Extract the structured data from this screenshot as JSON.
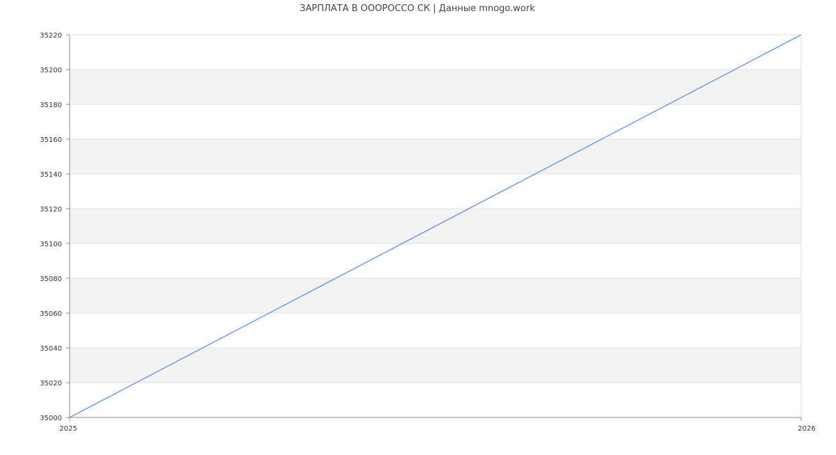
{
  "chart_data": {
    "type": "line",
    "title": "ЗАРПЛАТА В ОООРОССО СК | Данные mnogo.work",
    "xlabel": "",
    "ylabel": "",
    "x": [
      2025,
      2026
    ],
    "x_tick_labels": [
      "2025",
      "2026"
    ],
    "xlim": [
      2025,
      2026
    ],
    "ylim": [
      35000,
      35220
    ],
    "y_ticks": [
      35000,
      35020,
      35040,
      35060,
      35080,
      35100,
      35120,
      35140,
      35160,
      35180,
      35200,
      35220
    ],
    "series": [
      {
        "values": [
          35000,
          35220
        ]
      }
    ],
    "grid": true,
    "alternating_bands": true,
    "colors": {
      "line": "#6f9cf0",
      "band": "#f3f3f3",
      "grid": "#e0e0e0",
      "axis": "#888888",
      "text": "#333333"
    }
  }
}
